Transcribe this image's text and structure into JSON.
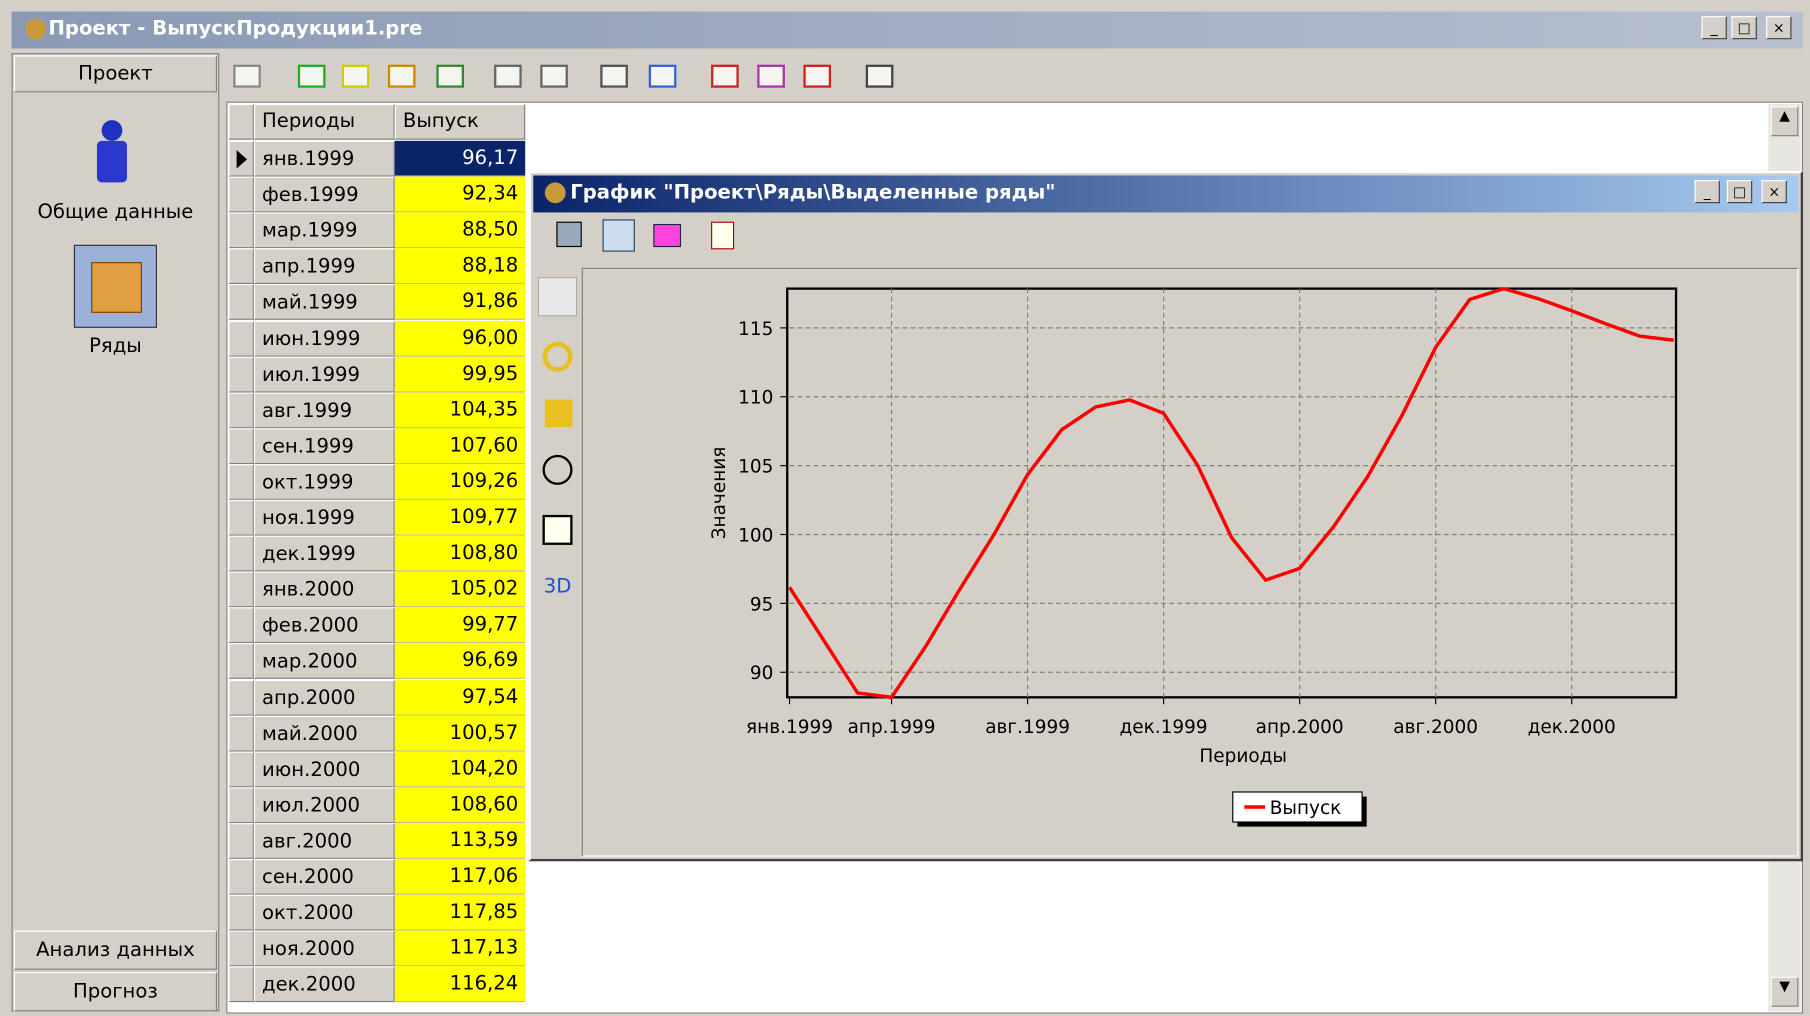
{
  "window": {
    "title": "Проект - ВыпускПродукции1.pre"
  },
  "sidebar": {
    "header": "Проект",
    "items": [
      "Общие данные",
      "Ряды"
    ],
    "footer": [
      "Анализ данных",
      "Прогноз"
    ]
  },
  "table": {
    "columns": [
      "Периоды",
      "Выпуск"
    ],
    "rows": [
      [
        "янв.1999",
        "96,17"
      ],
      [
        "фев.1999",
        "92,34"
      ],
      [
        "мар.1999",
        "88,50"
      ],
      [
        "апр.1999",
        "88,18"
      ],
      [
        "май.1999",
        "91,86"
      ],
      [
        "июн.1999",
        "96,00"
      ],
      [
        "июл.1999",
        "99,95"
      ],
      [
        "авг.1999",
        "104,35"
      ],
      [
        "сен.1999",
        "107,60"
      ],
      [
        "окт.1999",
        "109,26"
      ],
      [
        "ноя.1999",
        "109,77"
      ],
      [
        "дек.1999",
        "108,80"
      ],
      [
        "янв.2000",
        "105,02"
      ],
      [
        "фев.2000",
        "99,77"
      ],
      [
        "мар.2000",
        "96,69"
      ],
      [
        "апр.2000",
        "97,54"
      ],
      [
        "май.2000",
        "100,57"
      ],
      [
        "июн.2000",
        "104,20"
      ],
      [
        "июл.2000",
        "108,60"
      ],
      [
        "авг.2000",
        "113,59"
      ],
      [
        "сен.2000",
        "117,06"
      ],
      [
        "окт.2000",
        "117,85"
      ],
      [
        "ноя.2000",
        "117,13"
      ],
      [
        "дек.2000",
        "116,24"
      ]
    ]
  },
  "chart_window": {
    "title": "График \"Проект\\Ряды\\Выделенные ряды\"",
    "tool_3d": "3D"
  },
  "chart_data": {
    "type": "line",
    "x_label": "Периоды",
    "y_label": "Значения",
    "categories": [
      "янв.1999",
      null,
      null,
      "апр.1999",
      null,
      null,
      null,
      "авг.1999",
      null,
      null,
      null,
      "дек.1999",
      null,
      null,
      null,
      "апр.2000",
      null,
      null,
      null,
      "авг.2000",
      null,
      null,
      null,
      "дек.2000",
      null,
      null,
      null
    ],
    "series": [
      {
        "name": "Выпуск",
        "color": "#ff0000",
        "values": [
          96.17,
          92.34,
          88.5,
          88.18,
          91.86,
          96.0,
          99.95,
          104.35,
          107.6,
          109.26,
          109.77,
          108.8,
          105.02,
          99.77,
          96.69,
          97.54,
          100.57,
          104.2,
          108.6,
          113.59,
          117.06,
          117.85,
          117.13,
          116.24,
          115.3,
          114.4,
          114.1
        ]
      }
    ],
    "ylim": [
      88.18,
      117.85
    ],
    "yticks": [
      90,
      95,
      100,
      105,
      110,
      115
    ],
    "grid": true,
    "legend": "bottom"
  }
}
